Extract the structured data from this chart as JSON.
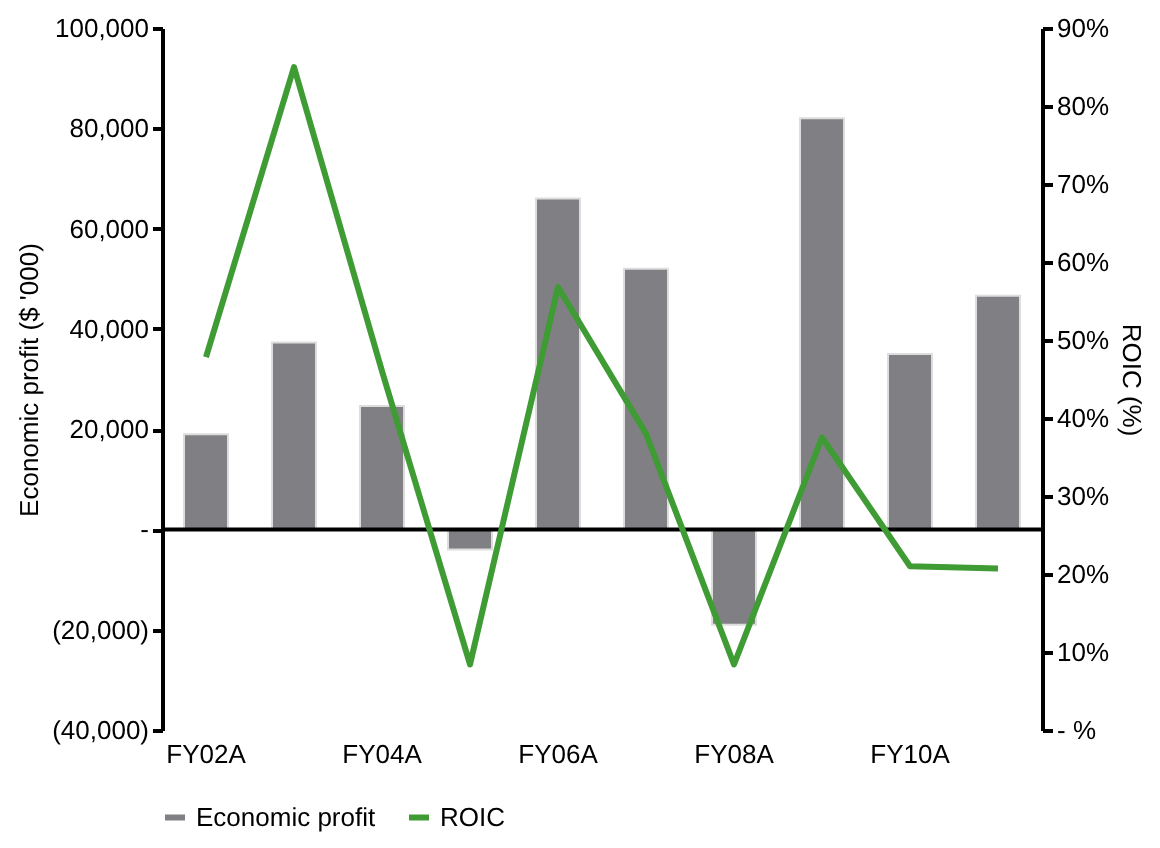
{
  "chart_data": {
    "type": "bar",
    "categories": [
      "FY02A",
      null,
      "FY04A",
      null,
      "FY06A",
      null,
      "FY08A",
      null,
      "FY10A",
      null
    ],
    "ylabel": "Economic profit ($ '000)",
    "y2label": "ROIC (%)",
    "ylim": [
      -40000,
      100000
    ],
    "yticks": [
      {
        "value": -40000,
        "label": "(40,000)"
      },
      {
        "value": -20000,
        "label": "(20,000)"
      },
      {
        "value": 0,
        "label": "-"
      },
      {
        "value": 20000,
        "label": "20,000"
      },
      {
        "value": 40000,
        "label": "40,000"
      },
      {
        "value": 60000,
        "label": "60,000"
      },
      {
        "value": 80000,
        "label": "80,000"
      },
      {
        "value": 100000,
        "label": "100,000"
      }
    ],
    "y2lim": [
      0,
      90
    ],
    "y2ticks": [
      {
        "value": 0,
        "label": "- %"
      },
      {
        "value": 10,
        "label": "10%"
      },
      {
        "value": 20,
        "label": "20%"
      },
      {
        "value": 30,
        "label": "30%"
      },
      {
        "value": 40,
        "label": "40%"
      },
      {
        "value": 50,
        "label": "50%"
      },
      {
        "value": 60,
        "label": "60%"
      },
      {
        "value": 70,
        "label": "70%"
      },
      {
        "value": 80,
        "label": "80%"
      },
      {
        "value": 90,
        "label": "90%"
      }
    ],
    "series": [
      {
        "name": "Economic profit",
        "color": "#807f83",
        "values": [
          19000,
          37300,
          24600,
          -4000,
          66000,
          52000,
          -19000,
          82000,
          35000,
          46600
        ]
      },
      {
        "name": "ROIC",
        "type": "line",
        "axis": "y2",
        "color": "#3f9c35",
        "values": [
          47.8,
          85,
          46,
          8.4,
          56.8,
          38,
          8.4,
          37.5,
          21,
          20.7
        ]
      }
    ],
    "legend": "bottom"
  }
}
